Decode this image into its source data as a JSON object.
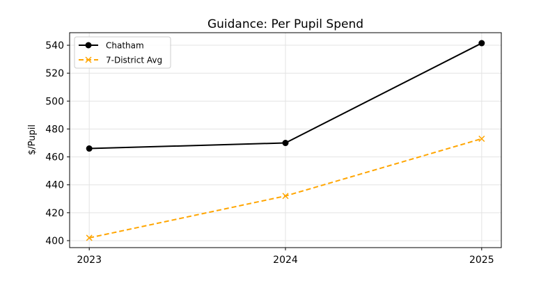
{
  "chart_data": {
    "type": "line",
    "title": "Guidance: Per Pupil Spend",
    "xlabel": "",
    "ylabel": "$/Pupil",
    "x": [
      2023,
      2024,
      2025
    ],
    "xtick_labels": [
      "2023",
      "2024",
      "2025"
    ],
    "xlim": [
      2022.9,
      2025.1
    ],
    "ylim": [
      395,
      549
    ],
    "yticks": [
      400,
      420,
      440,
      460,
      480,
      500,
      520,
      540
    ],
    "grid": true,
    "legend_position": "top-left",
    "series": [
      {
        "name": "Chatham",
        "values": [
          466,
          470,
          541.5
        ],
        "color": "#000000",
        "linestyle": "solid",
        "marker": "circle"
      },
      {
        "name": "7-District Avg",
        "values": [
          402,
          432,
          473
        ],
        "color": "#FFA500",
        "linestyle": "dashed",
        "marker": "x"
      }
    ]
  }
}
